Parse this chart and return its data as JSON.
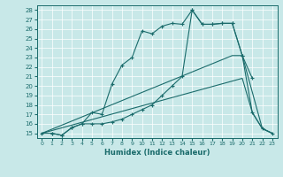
{
  "xlabel": "Humidex (Indice chaleur)",
  "bg_color": "#c8e8e8",
  "line_color": "#1a6b6b",
  "grid_color": "#ffffff",
  "xlim": [
    -0.5,
    23.5
  ],
  "ylim": [
    14.5,
    28.5
  ],
  "xticks": [
    0,
    1,
    2,
    3,
    4,
    5,
    6,
    7,
    8,
    9,
    10,
    11,
    12,
    13,
    14,
    15,
    16,
    17,
    18,
    19,
    20,
    21,
    22,
    23
  ],
  "yticks": [
    15,
    16,
    17,
    18,
    19,
    20,
    21,
    22,
    23,
    24,
    25,
    26,
    27,
    28
  ],
  "curve1_x": [
    0,
    1,
    2,
    3,
    4,
    5,
    6,
    7,
    8,
    9,
    10,
    11,
    12,
    13,
    14,
    15,
    16,
    17,
    18,
    19,
    20,
    21
  ],
  "curve1_y": [
    15,
    15,
    14.8,
    15.6,
    16.0,
    17.2,
    17.0,
    20.2,
    22.2,
    23.0,
    25.8,
    25.5,
    26.3,
    26.6,
    26.5,
    28.0,
    26.5,
    26.5,
    26.6,
    26.6,
    23.2,
    20.8
  ],
  "curve2_x": [
    1,
    2,
    3,
    4,
    5,
    6,
    7,
    8,
    9,
    10,
    11,
    12,
    13,
    14,
    15,
    16,
    17,
    18,
    19,
    20,
    21,
    22,
    23
  ],
  "curve2_y": [
    15,
    14.8,
    15.6,
    16.0,
    16.0,
    16.0,
    16.2,
    16.5,
    17.0,
    17.5,
    18.0,
    19.0,
    20.0,
    21.0,
    28.0,
    26.5,
    26.5,
    26.6,
    26.6,
    23.2,
    17.2,
    15.5,
    15.0
  ],
  "line3_x": [
    0,
    19,
    20,
    22,
    23
  ],
  "line3_y": [
    15.0,
    23.2,
    23.2,
    15.5,
    15.0
  ],
  "line4_x": [
    0,
    20,
    21,
    22,
    23
  ],
  "line4_y": [
    15.0,
    20.8,
    17.2,
    15.5,
    15.0
  ]
}
